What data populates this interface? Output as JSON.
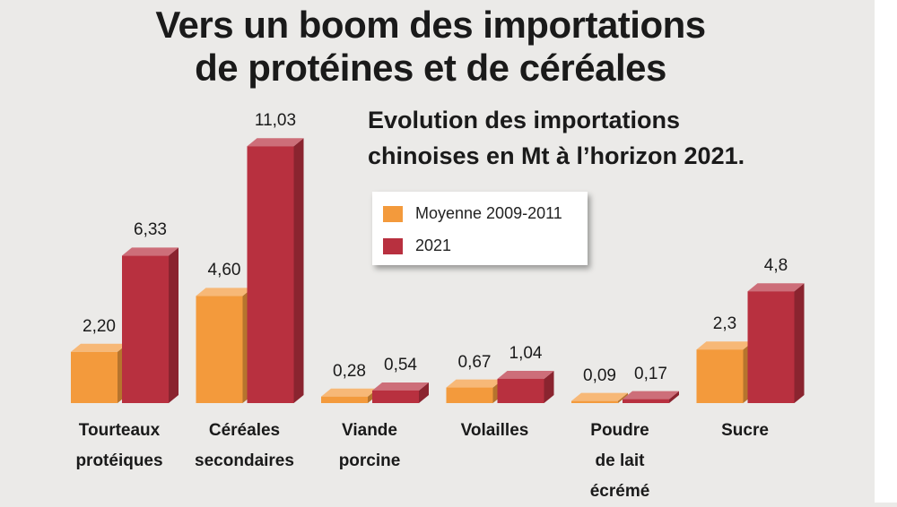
{
  "chart_data": {
    "type": "bar",
    "title": "Vers un boom des importations\nde protéines et de céréales",
    "subtitle": "Evolution des importations\nchinoises en Mt à l’horizon 2021.",
    "categories": [
      "Tourteaux\nprotéiques",
      "Céréales\nsecondaires",
      "Viande\nporcine",
      "Volailles",
      "Poudre\nde lait\nécrémé",
      "Sucre"
    ],
    "series": [
      {
        "name": "Moyenne 2009-2011",
        "color": "#f39a3c",
        "values": [
          2.2,
          4.6,
          0.28,
          0.67,
          0.09,
          2.3
        ],
        "value_labels": [
          "2,20",
          "4,60",
          "0,28",
          "0,67",
          "0,09",
          "2,3"
        ]
      },
      {
        "name": "2021",
        "color": "#b8303f",
        "values": [
          6.33,
          11.03,
          0.54,
          1.04,
          0.17,
          4.8
        ],
        "value_labels": [
          "6,33",
          "11,03",
          "0,54",
          "1,04",
          "0,17",
          "4,8"
        ]
      }
    ]
  }
}
